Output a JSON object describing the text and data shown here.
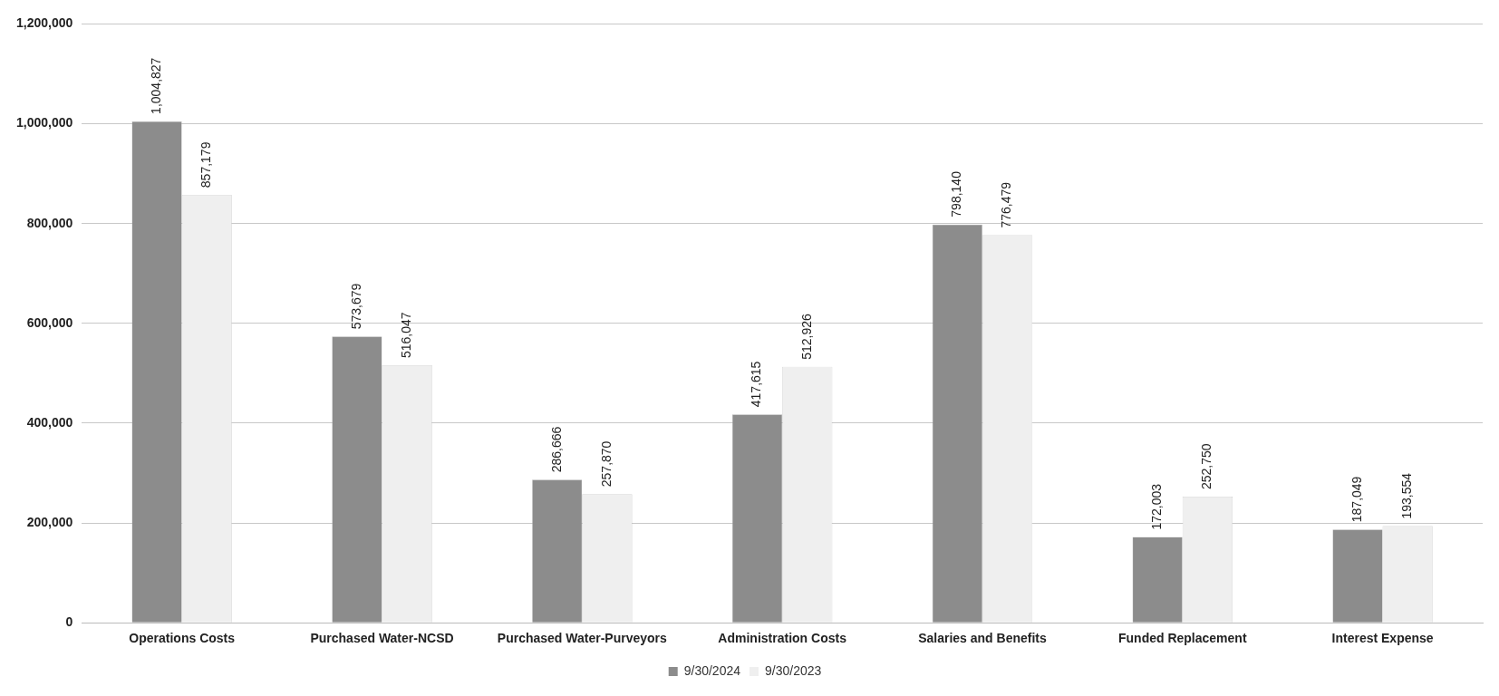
{
  "chart_data": {
    "type": "bar",
    "categories": [
      "Operations Costs",
      "Purchased Water-NCSD",
      "Purchased Water-Purveyors",
      "Administration Costs",
      "Salaries and Benefits",
      "Funded Replacement",
      "Interest Expense"
    ],
    "series": [
      {
        "name": "9/30/2024",
        "color": "#8c8c8c",
        "values": [
          1004827,
          573679,
          286666,
          417615,
          798140,
          172003,
          187049
        ],
        "value_labels": [
          "1,004,827",
          "573,679",
          "286,666",
          "417,615",
          "798,140",
          "172,003",
          "187,049"
        ]
      },
      {
        "name": "9/30/2023",
        "color": "#efefef",
        "values": [
          857179,
          516047,
          257870,
          512926,
          776479,
          252750,
          193554
        ],
        "value_labels": [
          "857,179",
          "516,047",
          "257,870",
          "512,926",
          "776,479",
          "252,750",
          "193,554"
        ]
      }
    ],
    "ylim": [
      0,
      1200000
    ],
    "yticks": [
      0,
      {
        "value": 200000,
        "label": "200,000"
      },
      {
        "value": 400000,
        "label": "400,000"
      },
      {
        "value": 600000,
        "label": "600,000"
      },
      {
        "value": 800000,
        "label": "800,000"
      },
      {
        "value": 1000000,
        "label": "1,000,000"
      },
      {
        "value": 1200000,
        "label": "1,200,000"
      }
    ],
    "grid": "y",
    "legend": "bottom"
  }
}
